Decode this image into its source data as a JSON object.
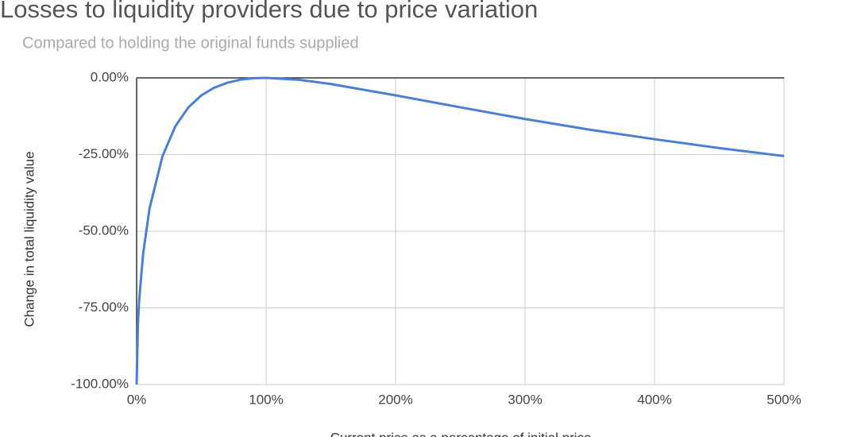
{
  "chart_data": {
    "type": "line",
    "title": "Losses to liquidity providers due to price variation",
    "subtitle": "Compared to holding the original funds supplied",
    "x_label": "Current price as a percentage of initial price",
    "y_label": "Change in total liquidity value",
    "x": [
      0,
      1,
      2,
      5,
      10,
      20,
      30,
      40,
      50,
      60,
      70,
      80,
      90,
      100,
      125,
      150,
      200,
      250,
      300,
      350,
      400,
      450,
      500
    ],
    "series": [
      {
        "name": "Change in total liquidity value",
        "color": "#4a7fd4",
        "values": [
          -100,
          -80.2,
          -72.3,
          -57.4,
          -42.5,
          -25.5,
          -15.7,
          -9.6,
          -5.7,
          -3.2,
          -1.6,
          -0.6,
          -0.1,
          0,
          -0.6,
          -2.0,
          -5.7,
          -9.6,
          -13.4,
          -16.9,
          -20,
          -22.9,
          -25.5
        ]
      }
    ],
    "xlim": [
      0,
      500
    ],
    "xticks": [
      {
        "value": 0,
        "label": "0%"
      },
      {
        "value": 100,
        "label": "100%"
      },
      {
        "value": 200,
        "label": "200%"
      },
      {
        "value": 300,
        "label": "300%"
      },
      {
        "value": 400,
        "label": "400%"
      },
      {
        "value": 500,
        "label": "500%"
      }
    ],
    "ylim": [
      -100,
      0
    ],
    "yticks": [
      {
        "value": -100,
        "label": "-100.00%"
      },
      {
        "value": -75,
        "label": "-75.00%"
      },
      {
        "value": -50,
        "label": "-50.00%"
      },
      {
        "value": -25,
        "label": "-25.00%"
      },
      {
        "value": 0,
        "label": "0.00%"
      }
    ],
    "grid": true
  }
}
